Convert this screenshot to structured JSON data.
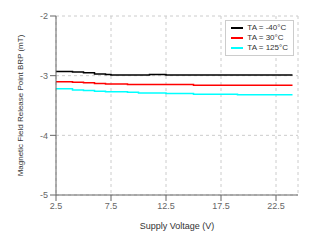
{
  "chart_data": {
    "type": "line",
    "xlabel": "Supply Voltage (V)",
    "ylabel": "Magnetic Field Release Point BRP (mT)",
    "x": [
      2.5,
      4.0,
      5.0,
      6.0,
      7.0,
      7.5,
      9.0,
      10.0,
      11.0,
      12.5,
      14.0,
      15.0,
      17.5,
      19.0,
      21.0,
      22.5,
      24.0
    ],
    "series": [
      {
        "name": "TA = -40°C",
        "color": "black",
        "values": [
          -2.93,
          -2.94,
          -2.95,
          -2.97,
          -2.98,
          -2.99,
          -2.99,
          -2.99,
          -2.98,
          -2.99,
          -2.99,
          -2.99,
          -2.99,
          -2.99,
          -2.99,
          -2.99,
          -2.99
        ]
      },
      {
        "name": "TA = 30°C",
        "color": "red",
        "values": [
          -3.1,
          -3.11,
          -3.12,
          -3.13,
          -3.14,
          -3.14,
          -3.15,
          -3.15,
          -3.15,
          -3.15,
          -3.15,
          -3.16,
          -3.16,
          -3.16,
          -3.16,
          -3.16,
          -3.16
        ]
      },
      {
        "name": "TA = 125°C",
        "color": "cyan",
        "values": [
          -3.22,
          -3.24,
          -3.25,
          -3.26,
          -3.27,
          -3.27,
          -3.28,
          -3.29,
          -3.29,
          -3.3,
          -3.3,
          -3.31,
          -3.31,
          -3.32,
          -3.32,
          -3.32,
          -3.32
        ]
      }
    ],
    "line_style": "step",
    "xlim": [
      2.5,
      24.5
    ],
    "ylim": [
      -5,
      -2
    ],
    "xticks": [
      2.5,
      7.5,
      12.5,
      17.5,
      22.5
    ],
    "yticks": [
      -5,
      -4,
      -3,
      -2
    ],
    "grid": true,
    "legend": "upper right"
  }
}
